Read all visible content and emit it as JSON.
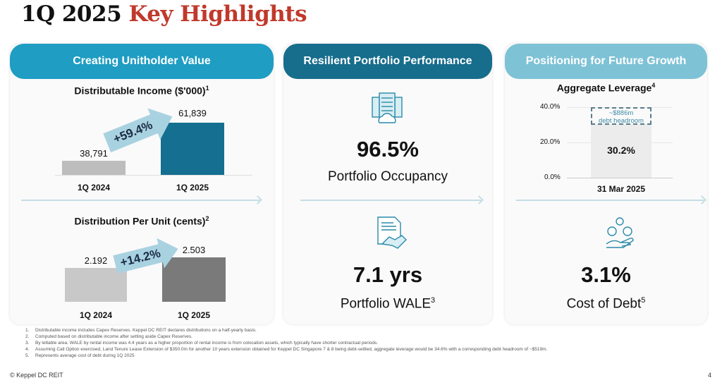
{
  "title": {
    "part1": "1Q 2025",
    "part2": "Key Highlights"
  },
  "colors": {
    "title_accent": "#c0392b",
    "panel1_header": "#1f9dc3",
    "panel2_header": "#176d8c",
    "panel3_header": "#7ec2d6",
    "bar_2024": "#bdbdbd",
    "bar_income_2025": "#146f90",
    "bar_dpu_2025": "#7a7a7a"
  },
  "panels": [
    {
      "header": "Creating Unitholder Value",
      "charts": [
        {
          "title": "Distributable Income ($'000)",
          "note": "1",
          "categories": [
            "1Q 2024",
            "1Q 2025"
          ],
          "values": [
            "38,791",
            "61,839"
          ],
          "change": "+59.4%"
        },
        {
          "title": "Distribution Per Unit (cents)",
          "note": "2",
          "categories": [
            "1Q 2024",
            "1Q 2025"
          ],
          "values": [
            "2.192",
            "2.503"
          ],
          "change": "+14.2%"
        }
      ]
    },
    {
      "header": "Resilient Portfolio Performance",
      "metrics": [
        {
          "icon": "data-center-icon",
          "value": "96.5%",
          "label": "Portfolio Occupancy",
          "note": ""
        },
        {
          "icon": "contract-handshake-icon",
          "value": "7.1 yrs",
          "label": "Portfolio WALE",
          "note": "3"
        }
      ]
    },
    {
      "header": "Positioning for Future Growth",
      "leverage": {
        "title": "Aggregate Leverage",
        "note": "4",
        "ticks": [
          "40.0%",
          "20.0%",
          "0.0%"
        ],
        "value": "30.2%",
        "headroom": "~$886m",
        "headroom_label": "debt headroom",
        "category": "31 Mar 2025"
      },
      "metric": {
        "icon": "finance-hand-icon",
        "value": "3.1%",
        "label": "Cost of Debt",
        "note": "5"
      }
    }
  ],
  "chart_data": [
    {
      "type": "bar",
      "title": "Distributable Income ($'000)",
      "categories": [
        "1Q 2024",
        "1Q 2025"
      ],
      "values": [
        38791,
        61839
      ]
    },
    {
      "type": "bar",
      "title": "Distribution Per Unit (cents)",
      "categories": [
        "1Q 2024",
        "1Q 2025"
      ],
      "values": [
        2.192,
        2.503
      ]
    },
    {
      "type": "bar",
      "title": "Aggregate Leverage",
      "categories": [
        "31 Mar 2025"
      ],
      "values": [
        30.2
      ],
      "ylim": [
        0,
        40
      ],
      "yticks": [
        "0.0%",
        "20.0%",
        "40.0%"
      ]
    }
  ],
  "footnotes": [
    {
      "n": "1.",
      "text": "Distributable income includes Capex Reserves. Keppel DC REIT declares distributions on a half-yearly basis."
    },
    {
      "n": "2.",
      "text": "Computed based on distributable income after setting aside Capex Reserves."
    },
    {
      "n": "3.",
      "text": "By lettable area. WALE by rental income was 4.4 years as a higher proportion of rental income is from colocation assets, which typically have shorter contractual periods."
    },
    {
      "n": "4.",
      "text": "Assuming Call Option exercised, Land Tenure Lease Extension of $350.0m for another 10 years extension obtained for Keppel DC Singapore 7 & 8 being debt-settled, aggregate leverage would be 34.6% with a corresponding debt headroom of ~$519m."
    },
    {
      "n": "5.",
      "text": "Represents average cost of debt during 1Q 2025"
    }
  ],
  "footer": {
    "copyright": "© Keppel DC REIT",
    "page": "4"
  }
}
